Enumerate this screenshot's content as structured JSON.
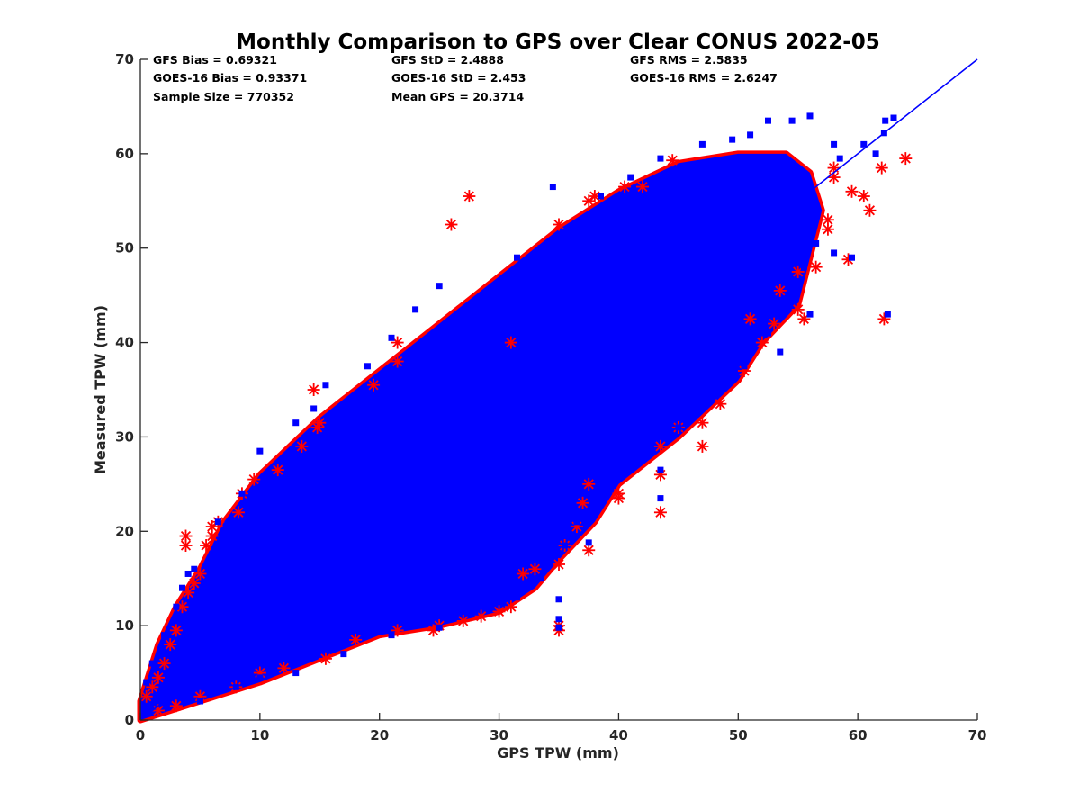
{
  "chart_data": {
    "type": "scatter",
    "title": "Monthly Comparison to GPS over Clear CONUS 2022-05",
    "xlabel": "GPS TPW (mm)",
    "ylabel": "Measured TPW (mm)",
    "xlim": [
      0,
      70
    ],
    "ylim": [
      0,
      70
    ],
    "xticks": [
      "0",
      "10",
      "20",
      "30",
      "40",
      "50",
      "60",
      "70"
    ],
    "yticks": [
      "0",
      "10",
      "20",
      "30",
      "40",
      "50",
      "60",
      "70"
    ],
    "grid": false,
    "legend": "none",
    "annotations": [
      [
        "GFS Bias = 0.69321",
        "GFS StD = 2.4888",
        "GFS RMS = 2.5835"
      ],
      [
        "GOES-16 Bias = 0.93371",
        "GOES-16 StD = 2.453",
        "GOES-16 RMS = 2.6247"
      ],
      [
        "Sample Size = 770352",
        "Mean GPS = 20.3714",
        ""
      ]
    ],
    "reference_line": {
      "x": [
        0,
        70
      ],
      "y": [
        0,
        70
      ],
      "color": "#0000ff"
    },
    "colors": {
      "series_red": "#ff0000",
      "series_blue": "#0000ff",
      "axis": "#262626"
    },
    "series": [
      {
        "color": "#ff0000",
        "marker": "asterisk",
        "points": [
          [
            0.5,
            2.5
          ],
          [
            1.0,
            3.5
          ],
          [
            1.5,
            4.5
          ],
          [
            2.0,
            6.0
          ],
          [
            2.5,
            8.0
          ],
          [
            3.0,
            9.5
          ],
          [
            3.5,
            12.0
          ],
          [
            4.0,
            13.5
          ],
          [
            4.5,
            14.5
          ],
          [
            5.0,
            15.5
          ],
          [
            3.8,
            18.5
          ],
          [
            3.8,
            19.5
          ],
          [
            5.5,
            18.5
          ],
          [
            6.0,
            19.5
          ],
          [
            6.5,
            21.0
          ],
          [
            6.0,
            20.5
          ],
          [
            8.2,
            22.0
          ],
          [
            8.5,
            24.0
          ],
          [
            9.5,
            25.5
          ],
          [
            11.5,
            26.5
          ],
          [
            13.5,
            29.0
          ],
          [
            14.8,
            31.0
          ],
          [
            15.0,
            31.5
          ],
          [
            14.5,
            35.0
          ],
          [
            19.5,
            35.5
          ],
          [
            21.5,
            38.0
          ],
          [
            21.5,
            40.0
          ],
          [
            26.0,
            52.5
          ],
          [
            27.5,
            55.5
          ],
          [
            31.0,
            40.0
          ],
          [
            35.0,
            52.5
          ],
          [
            37.5,
            55.0
          ],
          [
            38.0,
            55.5
          ],
          [
            40.5,
            56.5
          ],
          [
            42.0,
            56.5
          ],
          [
            44.5,
            59.3
          ],
          [
            58.0,
            57.5
          ],
          [
            58.0,
            58.5
          ],
          [
            59.5,
            56.0
          ],
          [
            60.5,
            55.5
          ],
          [
            61.0,
            54.0
          ],
          [
            62.0,
            58.5
          ],
          [
            64.0,
            59.5
          ],
          [
            57.5,
            53.0
          ],
          [
            57.5,
            52.0
          ],
          [
            59.2,
            48.8
          ],
          [
            56.5,
            48.0
          ],
          [
            55.0,
            47.5
          ],
          [
            53.5,
            45.5
          ],
          [
            52.0,
            40.0
          ],
          [
            53.0,
            42.0
          ],
          [
            55.0,
            43.5
          ],
          [
            55.5,
            42.5
          ],
          [
            51.0,
            42.5
          ],
          [
            62.2,
            42.5
          ],
          [
            48.5,
            33.5
          ],
          [
            47.0,
            31.5
          ],
          [
            45.0,
            31.0
          ],
          [
            43.5,
            29.0
          ],
          [
            43.5,
            26.0
          ],
          [
            43.5,
            22.0
          ],
          [
            40.0,
            24.0
          ],
          [
            40.0,
            23.5
          ],
          [
            37.5,
            25.0
          ],
          [
            37.0,
            23.0
          ],
          [
            36.5,
            20.5
          ],
          [
            35.5,
            18.5
          ],
          [
            37.5,
            18.0
          ],
          [
            35.0,
            16.5
          ],
          [
            33.0,
            16.0
          ],
          [
            32.0,
            15.5
          ],
          [
            31.0,
            12.0
          ],
          [
            30.0,
            11.5
          ],
          [
            28.5,
            11.0
          ],
          [
            27.0,
            10.5
          ],
          [
            25.0,
            10.0
          ],
          [
            24.5,
            9.5
          ],
          [
            21.5,
            9.5
          ],
          [
            18.0,
            8.5
          ],
          [
            15.5,
            6.5
          ],
          [
            12.0,
            5.5
          ],
          [
            10.0,
            5.0
          ],
          [
            8.0,
            3.5
          ],
          [
            5.0,
            2.5
          ],
          [
            3.0,
            1.5
          ],
          [
            1.5,
            1.0
          ],
          [
            35.0,
            9.5
          ],
          [
            35.0,
            10.0
          ],
          [
            47.0,
            29.0
          ],
          [
            50.5,
            37.0
          ]
        ]
      },
      {
        "color": "#0000ff",
        "marker": "square",
        "points": [
          [
            35.0,
            9.8
          ],
          [
            35.0,
            10.7
          ],
          [
            35.0,
            12.8
          ],
          [
            35.5,
            18.5
          ],
          [
            37.5,
            18.8
          ],
          [
            43.5,
            23.5
          ],
          [
            43.5,
            26.5
          ],
          [
            53.5,
            39.0
          ],
          [
            55.5,
            48.0
          ],
          [
            56.5,
            50.5
          ],
          [
            58.0,
            49.5
          ],
          [
            59.5,
            49.0
          ],
          [
            62.5,
            43.0
          ],
          [
            63.0,
            63.8
          ],
          [
            62.3,
            63.5
          ],
          [
            62.2,
            62.2
          ],
          [
            61.5,
            60.0
          ],
          [
            58.5,
            59.5
          ],
          [
            60.5,
            61.0
          ],
          [
            58.0,
            61.0
          ],
          [
            56.0,
            64.0
          ],
          [
            54.5,
            63.5
          ],
          [
            52.5,
            63.5
          ],
          [
            51.0,
            62.0
          ],
          [
            49.5,
            61.5
          ],
          [
            47.0,
            61.0
          ],
          [
            43.5,
            59.5
          ],
          [
            41.0,
            57.5
          ],
          [
            34.5,
            56.5
          ],
          [
            38.5,
            55.5
          ],
          [
            33.5,
            50.0
          ],
          [
            31.5,
            49.0
          ],
          [
            25.0,
            46.0
          ],
          [
            23.0,
            43.5
          ],
          [
            21.0,
            40.5
          ],
          [
            19.0,
            37.5
          ],
          [
            15.5,
            35.5
          ],
          [
            14.5,
            33.0
          ],
          [
            13.0,
            31.5
          ],
          [
            10.0,
            28.5
          ],
          [
            8.5,
            24.0
          ],
          [
            6.5,
            21.0
          ],
          [
            4.5,
            16.0
          ],
          [
            4.0,
            15.5
          ],
          [
            3.5,
            14.0
          ],
          [
            3.0,
            12.0
          ],
          [
            2.0,
            9.0
          ],
          [
            1.0,
            6.0
          ],
          [
            0.5,
            4.0
          ],
          [
            5.0,
            2.0
          ],
          [
            8.0,
            3.5
          ],
          [
            10.0,
            4.5
          ],
          [
            13.0,
            5.0
          ],
          [
            17.0,
            7.0
          ],
          [
            21.0,
            9.0
          ],
          [
            25.0,
            9.8
          ],
          [
            28.0,
            11.5
          ],
          [
            31.5,
            13.0
          ],
          [
            33.5,
            15.0
          ],
          [
            36.5,
            21.0
          ],
          [
            40.5,
            28.0
          ],
          [
            45.0,
            31.0
          ],
          [
            50.5,
            37.5
          ],
          [
            52.5,
            41.0
          ],
          [
            56.0,
            43.0
          ],
          [
            22.5,
            38.0
          ]
        ]
      }
    ],
    "cloud_band": {
      "lower": [
        [
          0,
          0
        ],
        [
          2,
          0.8
        ],
        [
          5,
          2
        ],
        [
          10,
          4
        ],
        [
          15,
          6.5
        ],
        [
          20,
          9
        ],
        [
          25,
          10
        ],
        [
          30,
          11.5
        ],
        [
          33,
          14
        ],
        [
          35,
          17
        ],
        [
          38,
          21
        ],
        [
          40,
          25
        ],
        [
          43,
          28
        ],
        [
          45,
          30
        ],
        [
          50,
          36
        ],
        [
          52,
          40
        ],
        [
          55,
          44
        ],
        [
          56,
          49
        ]
      ],
      "upper": [
        [
          56,
          49
        ],
        [
          57,
          54
        ],
        [
          56,
          58
        ],
        [
          54,
          60
        ],
        [
          50,
          60
        ],
        [
          45,
          59
        ],
        [
          40,
          56
        ],
        [
          35,
          52
        ],
        [
          30,
          47
        ],
        [
          25,
          42
        ],
        [
          20,
          37
        ],
        [
          15,
          32
        ],
        [
          10,
          26
        ],
        [
          7,
          21
        ],
        [
          5,
          16
        ],
        [
          3,
          12
        ],
        [
          1.5,
          8
        ],
        [
          0.5,
          4
        ],
        [
          0,
          2
        ]
      ]
    }
  }
}
